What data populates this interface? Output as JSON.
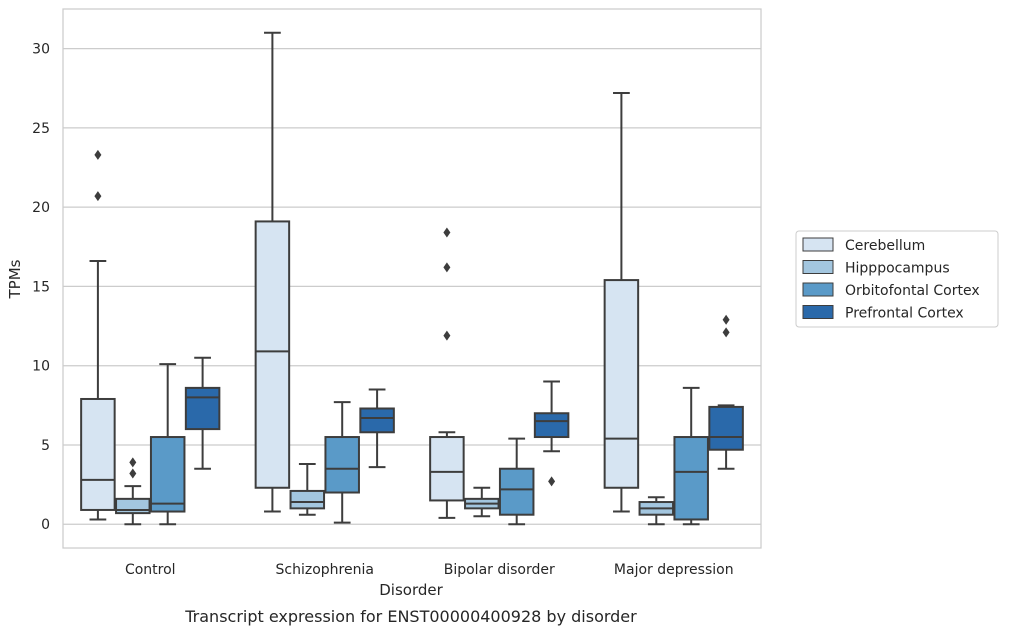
{
  "chart_data": {
    "type": "box",
    "caption": "Transcript expression for ENST00000400928 by disorder",
    "xlabel": "Disorder",
    "ylabel": "TPMs",
    "ylim": [
      -1.5,
      32.5
    ],
    "yticks": [
      0,
      5,
      10,
      15,
      20,
      25,
      30
    ],
    "grid": "horizontal",
    "legend_position": "right",
    "categories": [
      "Control",
      "Schizophrenia",
      "Bipolar disorder",
      "Major depression"
    ],
    "series": [
      {
        "name": "Cerebellum",
        "color": "#d6e4f2",
        "boxes": [
          {
            "whisker_low": 0.3,
            "q1": 0.9,
            "median": 2.8,
            "q3": 7.9,
            "whisker_high": 16.6,
            "outliers": [
              20.7,
              23.3
            ]
          },
          {
            "whisker_low": 0.8,
            "q1": 2.3,
            "median": 10.9,
            "q3": 19.1,
            "whisker_high": 31.0,
            "outliers": []
          },
          {
            "whisker_low": 0.4,
            "q1": 1.5,
            "median": 3.3,
            "q3": 5.5,
            "whisker_high": 5.8,
            "outliers": [
              11.9,
              16.2,
              18.4
            ]
          },
          {
            "whisker_low": 0.8,
            "q1": 2.3,
            "median": 5.4,
            "q3": 15.4,
            "whisker_high": 27.2,
            "outliers": []
          }
        ]
      },
      {
        "name": "Hipppocampus",
        "color": "#a3c6df",
        "boxes": [
          {
            "whisker_low": 0.0,
            "q1": 0.7,
            "median": 0.9,
            "q3": 1.6,
            "whisker_high": 2.4,
            "outliers": [
              3.2,
              3.9
            ]
          },
          {
            "whisker_low": 0.6,
            "q1": 1.0,
            "median": 1.4,
            "q3": 2.1,
            "whisker_high": 3.8,
            "outliers": []
          },
          {
            "whisker_low": 0.5,
            "q1": 1.0,
            "median": 1.3,
            "q3": 1.6,
            "whisker_high": 2.3,
            "outliers": []
          },
          {
            "whisker_low": 0.0,
            "q1": 0.6,
            "median": 1.0,
            "q3": 1.4,
            "whisker_high": 1.7,
            "outliers": []
          }
        ]
      },
      {
        "name": "Orbitofontal Cortex",
        "color": "#5a9ac8",
        "boxes": [
          {
            "whisker_low": 0.0,
            "q1": 0.8,
            "median": 1.3,
            "q3": 5.5,
            "whisker_high": 10.1,
            "outliers": []
          },
          {
            "whisker_low": 0.1,
            "q1": 2.0,
            "median": 3.5,
            "q3": 5.5,
            "whisker_high": 7.7,
            "outliers": []
          },
          {
            "whisker_low": 0.0,
            "q1": 0.6,
            "median": 2.2,
            "q3": 3.5,
            "whisker_high": 5.4,
            "outliers": []
          },
          {
            "whisker_low": 0.0,
            "q1": 0.3,
            "median": 3.3,
            "q3": 5.5,
            "whisker_high": 8.6,
            "outliers": []
          }
        ]
      },
      {
        "name": "Prefrontal Cortex",
        "color": "#2a69aa",
        "boxes": [
          {
            "whisker_low": 3.5,
            "q1": 6.0,
            "median": 8.0,
            "q3": 8.6,
            "whisker_high": 10.5,
            "outliers": []
          },
          {
            "whisker_low": 3.6,
            "q1": 5.8,
            "median": 6.7,
            "q3": 7.3,
            "whisker_high": 8.5,
            "outliers": []
          },
          {
            "whisker_low": 4.6,
            "q1": 5.5,
            "median": 6.5,
            "q3": 7.0,
            "whisker_high": 9.0,
            "outliers": [
              2.7
            ]
          },
          {
            "whisker_low": 3.5,
            "q1": 4.7,
            "median": 5.5,
            "q3": 7.4,
            "whisker_high": 7.5,
            "outliers": [
              12.1,
              12.9
            ]
          }
        ]
      }
    ]
  }
}
